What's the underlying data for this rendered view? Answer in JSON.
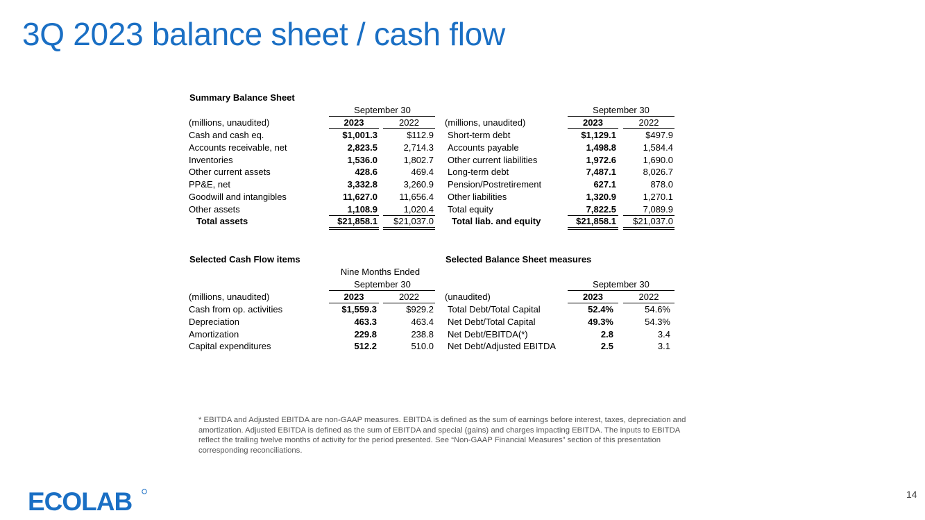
{
  "title": "3Q 2023 balance sheet / cash flow",
  "page_number": "14",
  "logo_text": "ECOLAB",
  "balance_sheet": {
    "heading": "Summary Balance Sheet",
    "left": {
      "period_header": "September 30",
      "units": "(millions, unaudited)",
      "col1": "2023",
      "col2": "2022",
      "rows": [
        {
          "label": "Cash and cash eq.",
          "v2023": "$1,001.3",
          "v2022": "$112.9"
        },
        {
          "label": "Accounts receivable, net",
          "v2023": "2,823.5",
          "v2022": "2,714.3"
        },
        {
          "label": "Inventories",
          "v2023": "1,536.0",
          "v2022": "1,802.7"
        },
        {
          "label": "Other current assets",
          "v2023": "428.6",
          "v2022": "469.4"
        },
        {
          "label": "PP&E, net",
          "v2023": "3,332.8",
          "v2022": "3,260.9"
        },
        {
          "label": "Goodwill and intangibles",
          "v2023": "11,627.0",
          "v2022": "11,656.4"
        },
        {
          "label": "Other assets",
          "v2023": "1,108.9",
          "v2022": "1,020.4"
        }
      ],
      "total": {
        "label": "Total assets",
        "v2023": "$21,858.1",
        "v2022": "$21,037.0"
      }
    },
    "right": {
      "period_header": "September 30",
      "units": "(millions, unaudited)",
      "col1": "2023",
      "col2": "2022",
      "rows": [
        {
          "label": "Short-term debt",
          "v2023": "$1,129.1",
          "v2022": "$497.9"
        },
        {
          "label": "Accounts payable",
          "v2023": "1,498.8",
          "v2022": "1,584.4"
        },
        {
          "label": "Other current liabilities",
          "v2023": "1,972.6",
          "v2022": "1,690.0"
        },
        {
          "label": "Long-term debt",
          "v2023": "7,487.1",
          "v2022": "8,026.7"
        },
        {
          "label": "Pension/Postretirement",
          "v2023": "627.1",
          "v2022": "878.0"
        },
        {
          "label": "Other liabilities",
          "v2023": "1,320.9",
          "v2022": "1,270.1"
        },
        {
          "label": "Total equity",
          "v2023": "7,822.5",
          "v2022": "7,089.9"
        }
      ],
      "total": {
        "label": "Total liab. and equity",
        "v2023": "$21,858.1",
        "v2022": "$21,037.0"
      }
    }
  },
  "cash_flow": {
    "heading": "Selected Cash Flow items",
    "period_header_1": "Nine Months Ended",
    "period_header_2": "September 30",
    "units": "(millions, unaudited)",
    "col1": "2023",
    "col2": "2022",
    "rows": [
      {
        "label": "Cash from op. activities",
        "v2023": "$1,559.3",
        "v2022": "$929.2"
      },
      {
        "label": "Depreciation",
        "v2023": "463.3",
        "v2022": "463.4"
      },
      {
        "label": "Amortization",
        "v2023": "229.8",
        "v2022": "238.8"
      },
      {
        "label": "Capital expenditures",
        "v2023": "512.2",
        "v2022": "510.0"
      }
    ]
  },
  "bs_measures": {
    "heading": "Selected Balance Sheet measures",
    "period_header": "September 30",
    "units": "(unaudited)",
    "col1": "2023",
    "col2": "2022",
    "rows": [
      {
        "label": "Total Debt/Total Capital",
        "v2023": "52.4%",
        "v2022": "54.6%"
      },
      {
        "label": "Net Debt/Total Capital",
        "v2023": "49.3%",
        "v2022": "54.3%"
      },
      {
        "label": "Net Debt/EBITDA(*)",
        "v2023": "2.8",
        "v2022": "3.4"
      },
      {
        "label": "Net Debt/Adjusted EBITDA",
        "v2023": "2.5",
        "v2022": "3.1"
      }
    ]
  },
  "footnote": "* EBITDA and Adjusted EBITDA are non-GAAP measures. EBITDA is defined as the sum of earnings before interest, taxes, depreciation and amortization. Adjusted EBITDA is defined as the sum of EBITDA and special (gains) and charges impacting EBITDA. The inputs to EBITDA reflect the trailing twelve months of activity for the period presented. See “Non-GAAP Financial Measures” section of this presentation corresponding reconciliations.",
  "colors": {
    "title": "#1a6fc4",
    "logo": "#1a6fc4",
    "footnote": "#555555"
  }
}
